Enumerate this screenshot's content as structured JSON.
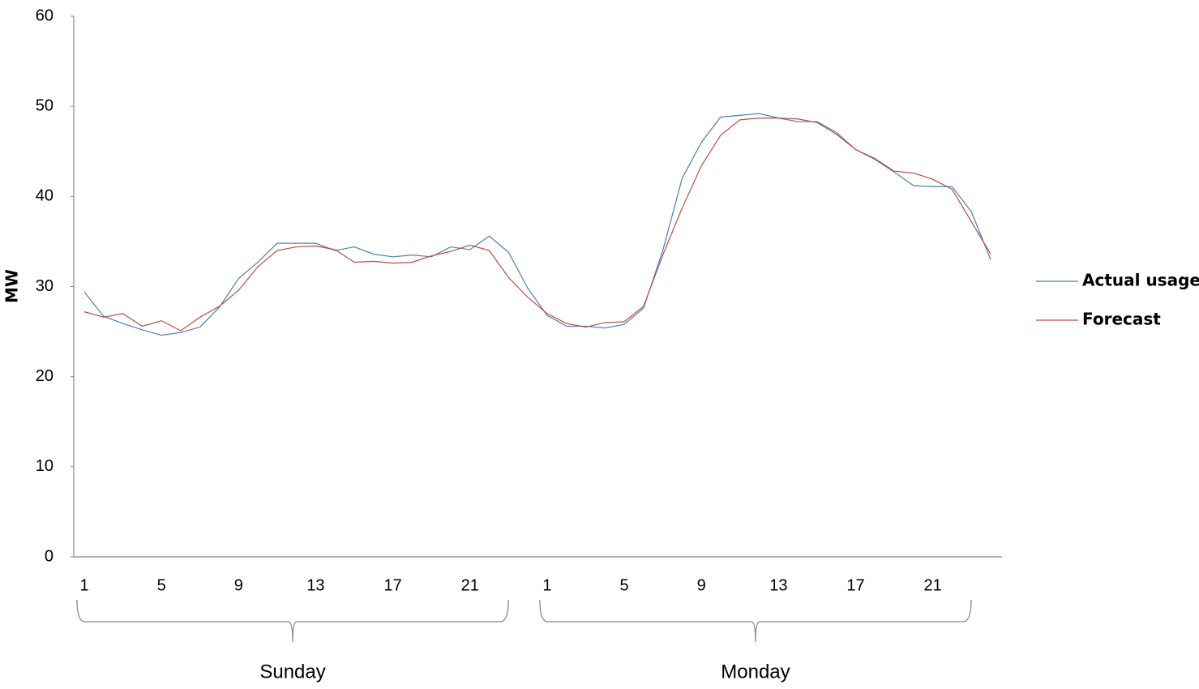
{
  "chart_data": {
    "type": "line",
    "ylabel": "MW",
    "categories": [
      "1",
      null,
      null,
      null,
      "5",
      null,
      null,
      null,
      "9",
      null,
      null,
      null,
      "13",
      null,
      null,
      null,
      "17",
      null,
      null,
      null,
      "21",
      null,
      null,
      null,
      "1",
      null,
      null,
      null,
      "5",
      null,
      null,
      null,
      "9",
      null,
      null,
      null,
      "13",
      null,
      null,
      null,
      "17",
      null,
      null,
      null,
      "21",
      null,
      null,
      null
    ],
    "groups": [
      "Sunday",
      "Monday"
    ],
    "series": [
      {
        "name": "Actual usage",
        "color": "#4a7ebb",
        "values": [
          29.4,
          26.7,
          25.9,
          25.2,
          24.6,
          24.9,
          25.5,
          27.7,
          30.9,
          32.7,
          34.8,
          34.8,
          34.8,
          34.0,
          34.4,
          33.6,
          33.3,
          33.5,
          33.3,
          34.4,
          34.1,
          35.6,
          33.8,
          29.8,
          26.8,
          25.6,
          25.6,
          25.4,
          25.8,
          27.6,
          34.0,
          42.0,
          46.0,
          48.8,
          49.0,
          49.2,
          48.7,
          48.3,
          48.3,
          47.1,
          45.2,
          44.1,
          42.7,
          41.2,
          41.1,
          41.1,
          38.3,
          33.0
        ]
      },
      {
        "name": "Forecast",
        "color": "#be4b48",
        "values": [
          27.2,
          26.6,
          27.0,
          25.6,
          26.2,
          25.1,
          26.6,
          27.8,
          29.6,
          32.2,
          34.0,
          34.4,
          34.5,
          34.1,
          32.7,
          32.8,
          32.6,
          32.7,
          33.4,
          33.9,
          34.6,
          34.0,
          31.0,
          28.8,
          27.0,
          25.9,
          25.5,
          26.0,
          26.1,
          27.8,
          33.5,
          38.7,
          43.4,
          46.8,
          48.5,
          48.7,
          48.7,
          48.6,
          48.2,
          46.9,
          45.2,
          44.2,
          42.8,
          42.6,
          41.9,
          40.8,
          37.2,
          33.6
        ]
      }
    ],
    "ylim": [
      0,
      60
    ],
    "yticks": [
      0,
      10,
      20,
      30,
      40,
      50,
      60
    ],
    "grid": false,
    "legend": "right"
  }
}
